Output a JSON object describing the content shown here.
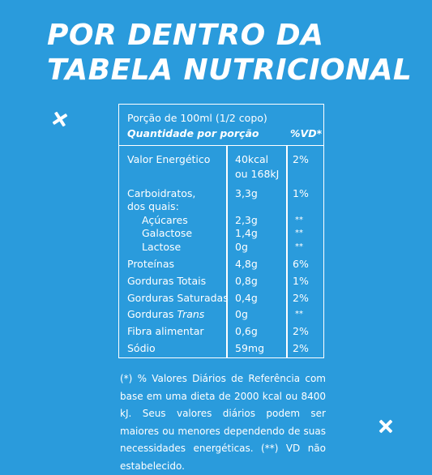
{
  "title": {
    "line1": "POR DENTRO DA",
    "line2": "TABELA NUTRICIONAL"
  },
  "table": {
    "portion": "Porção de 100ml (1/2 copo)",
    "amount_header": "Quantidade por porção",
    "vd_header": "%VD*",
    "rows": [
      {
        "name": "Valor Energético",
        "qty": "40kcal",
        "qty2": "ou 168kJ",
        "vd": "2%"
      },
      {
        "name": "Carboidratos,",
        "name2": "dos quais:",
        "qty": "3,3g",
        "vd": "1%"
      },
      {
        "name": "Açúcares",
        "qty": "2,3g",
        "vd": "**"
      },
      {
        "name": "Galactose",
        "qty": "1,4g",
        "vd": "**"
      },
      {
        "name": "Lactose",
        "qty": "0g",
        "vd": "**"
      },
      {
        "name": "Proteínas",
        "qty": "4,8g",
        "vd": "6%"
      },
      {
        "name": "Gorduras Totais",
        "qty": "0,8g",
        "vd": "1%"
      },
      {
        "name": "Gorduras Saturadas",
        "qty": "0,4g",
        "vd": "2%"
      },
      {
        "name": "Gorduras",
        "name_italic": "Trans",
        "qty": "0g",
        "vd": "**"
      },
      {
        "name": "Fibra alimentar",
        "qty": "0,6g",
        "vd": "2%"
      },
      {
        "name": "Sódio",
        "qty": "59mg",
        "vd": "2%"
      }
    ]
  },
  "footnote": "(*) % Valores Diários de Referência com base em uma dieta de 2000 kcal ou 8400 kJ. Seus valores diários podem ser maiores ou menores dependendo de suas necessidades energéticas. (**) VD não estabelecido.",
  "icons": [
    "close-x-icon",
    "close-x-icon"
  ]
}
